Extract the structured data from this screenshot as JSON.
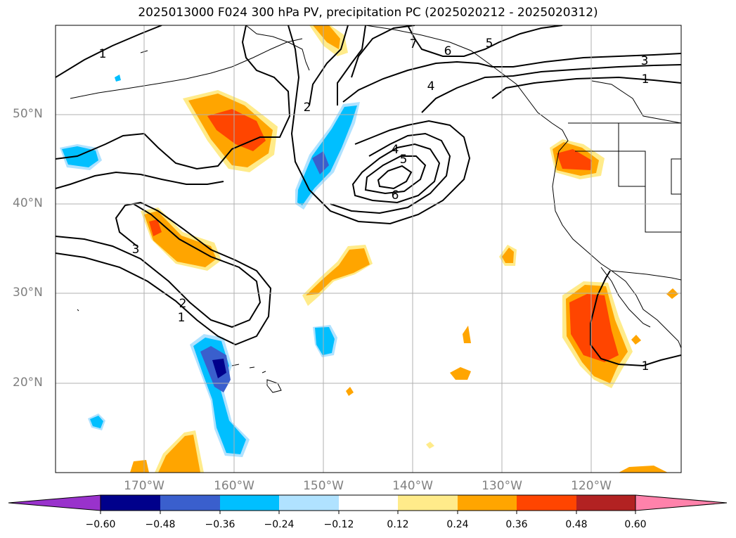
{
  "title": "2025013000 F024 300 hPa PV, precipitation PC (2025020212 - 2025020312)",
  "map": {
    "lat_labels": [
      "50°N",
      "40°N",
      "30°N",
      "20°N"
    ],
    "lon_labels": [
      "170°W",
      "160°W",
      "150°W",
      "140°W",
      "130°W",
      "120°W"
    ],
    "pv_contour_labels": [
      "1",
      "1",
      "1",
      "1",
      "2",
      "2",
      "3",
      "3",
      "4",
      "4",
      "5",
      "5",
      "6",
      "6",
      "7"
    ]
  },
  "colorbar": {
    "tick_labels": [
      "−0.60",
      "−0.48",
      "−0.36",
      "−0.24",
      "−0.12",
      "0.12",
      "0.24",
      "0.36",
      "0.48",
      "0.60"
    ],
    "colors": [
      "#9932cc",
      "#00008b",
      "#3a5fcd",
      "#00bfff",
      "#b0e2ff",
      "#ffffff",
      "#ffeb8a",
      "#ffa500",
      "#ff4500",
      "#b22222",
      "#ff82ab"
    ]
  }
}
